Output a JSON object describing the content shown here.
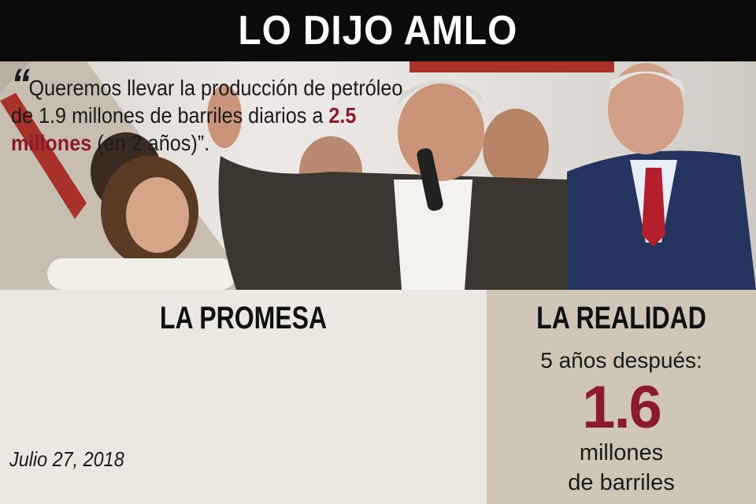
{
  "header": {
    "title": "LO DIJO AMLO"
  },
  "photo": {
    "description_icon": "press-photo"
  },
  "promise": {
    "title": "LA PROMESA",
    "quote_part1": "Queremos llevar la producción de petróleo de 1.9 millones de barriles diarios a ",
    "quote_highlight": "2.5 millones",
    "quote_part2": " (en 2 años)”.",
    "date": "Julio 27, 2018"
  },
  "reality": {
    "title": "LA REALIDAD",
    "subtitle": "5 años después:",
    "value": "1.6",
    "unit_line1": "millones",
    "unit_line2": "de barriles"
  },
  "colors": {
    "accent": "#8b1a2b",
    "header_bg": "#0b0b0b",
    "left_bg": "#ebe8e1",
    "right_bg": "#cfc6b8"
  }
}
